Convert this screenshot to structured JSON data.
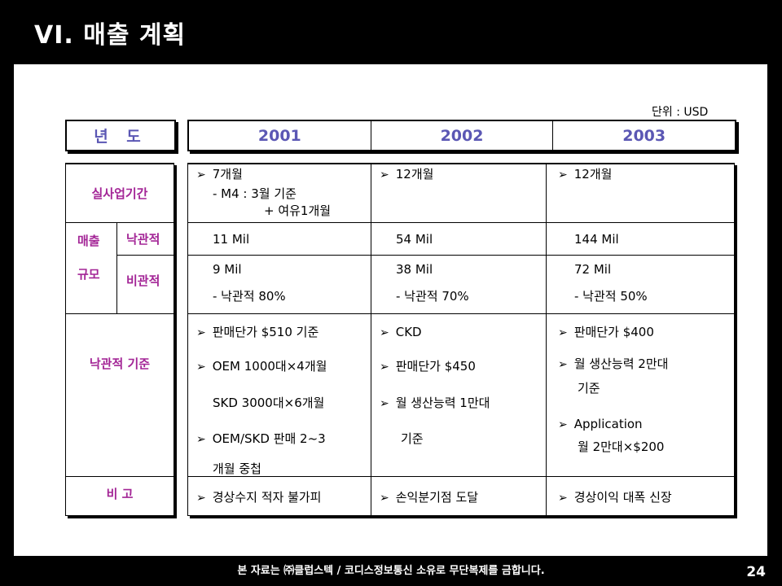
{
  "slide_title": "VI. 매출 계획",
  "unit_label": "단위 : USD",
  "year_label": "년 도",
  "years": [
    "2001",
    "2002",
    "2003"
  ],
  "rows": {
    "business_period": {
      "label": "실사업기간",
      "c2001": [
        "7개월",
        "- M4 : 3월 기준",
        "+ 여유1개월"
      ],
      "c2002": [
        "12개월"
      ],
      "c2003": [
        "12개월"
      ]
    },
    "sales_scale": {
      "label_top": "매출",
      "label_bottom": "규모",
      "optimistic": {
        "label": "낙관적",
        "c2001": "11 Mil",
        "c2002": "54 Mil",
        "c2003": "144 Mil"
      },
      "pessimistic": {
        "label": "비관적",
        "c2001": [
          "9 Mil",
          "- 낙관적 80%"
        ],
        "c2002": [
          "38 Mil",
          "- 낙관적 70%"
        ],
        "c2003": [
          "72 Mil",
          "- 낙관적 50%"
        ]
      }
    },
    "optimistic_basis": {
      "label": "낙관적 기준",
      "c2001": [
        "판매단가 $510 기준",
        "OEM 1000대×4개월",
        "SKD 3000대×6개월",
        "OEM/SKD 판매 2~3",
        "개월 중첩"
      ],
      "c2002": [
        "CKD",
        "판매단가 $450",
        "월 생산능력 1만대",
        "기준"
      ],
      "c2003": [
        "판매단가 $400",
        "월 생산능력 2만대",
        "기준",
        "Application",
        "월 2만대×$200"
      ]
    },
    "remarks": {
      "label": "비 고",
      "c2001": "경상수지 적자 불가피",
      "c2002": "손익분기점 도달",
      "c2003": "경상이익 대폭 신장"
    }
  },
  "footer": "본 자료는 ㈜클럽스텍 / 코디스정보통신 소유로 무단복제를 금합니다.",
  "page_number": "24",
  "colors": {
    "year_blue": "#5b57b4",
    "label_purple": "#a32596"
  },
  "bullet_icon": "arrow-bullet-icon"
}
